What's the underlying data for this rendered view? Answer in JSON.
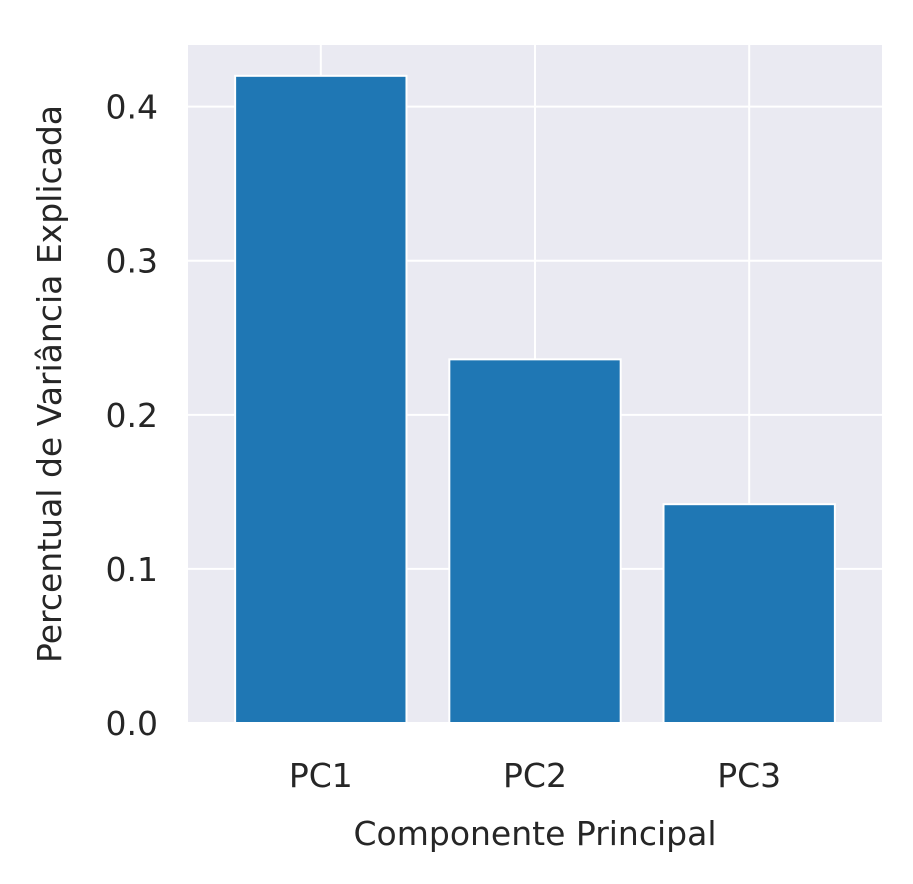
{
  "chart_data": {
    "type": "bar",
    "categories": [
      "PC1",
      "PC2",
      "PC3"
    ],
    "values": [
      0.42,
      0.236,
      0.142
    ],
    "xlabel": "Componente Principal",
    "ylabel": "Percentual de Variância Explicada",
    "ylim": [
      0,
      0.44
    ],
    "yticks": [
      0.0,
      0.1,
      0.2,
      0.3,
      0.4
    ],
    "ytick_labels": [
      "0.0",
      "0.1",
      "0.2",
      "0.3",
      "0.4"
    ],
    "grid": true,
    "colors": {
      "bar": "#1f77b4",
      "plot_background": "#eaeaf2",
      "grid": "#ffffff",
      "text": "#262626"
    }
  }
}
